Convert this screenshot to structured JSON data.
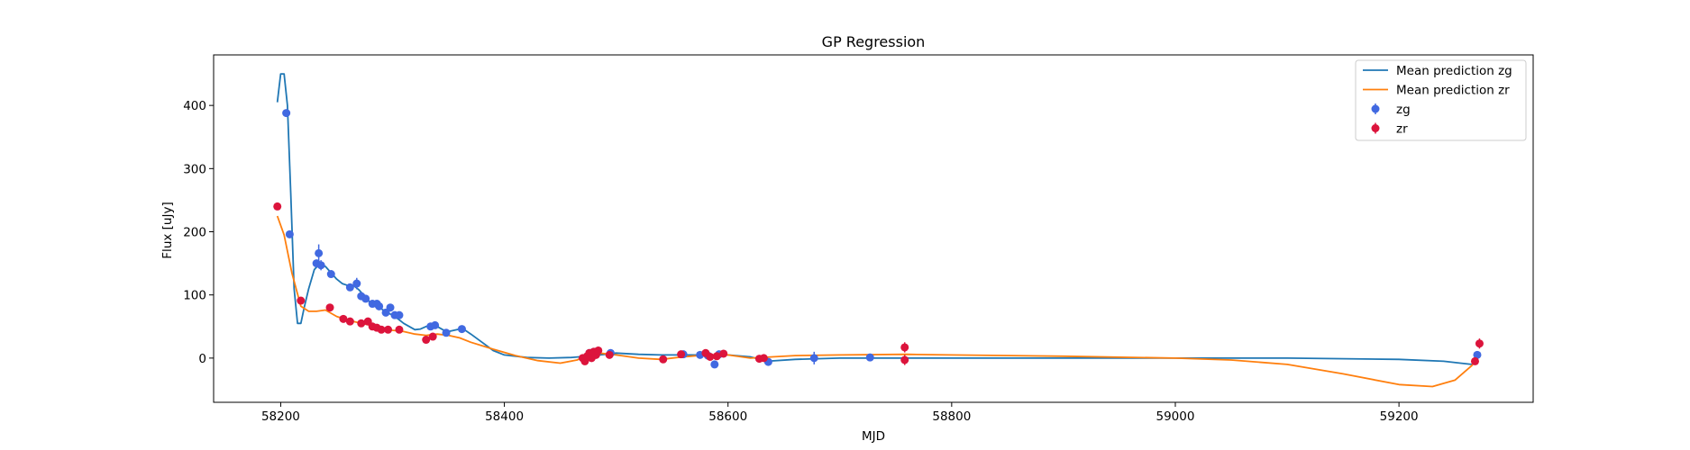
{
  "chart_data": {
    "type": "line",
    "title": "GP Regression",
    "xlabel": "MJD",
    "ylabel": "Flux [uJy]",
    "xlim": [
      58140,
      59320
    ],
    "ylim": [
      -70,
      480
    ],
    "xticks": [
      58200,
      58400,
      58600,
      58800,
      59000,
      59200
    ],
    "yticks": [
      0,
      100,
      200,
      300,
      400
    ],
    "grid": false,
    "legend_position": "top-right",
    "colors": {
      "mean_zg": "#1f77b4",
      "mean_zr": "#ff7f0e",
      "zg": "#4169e1",
      "zr": "#dc143c"
    },
    "lines": [
      {
        "name": "Mean prediction zg",
        "color_key": "mean_zg",
        "x": [
          58197,
          58200,
          58203,
          58206,
          58209,
          58212,
          58215,
          58218,
          58221,
          58225,
          58230,
          58235,
          58240,
          58245,
          58250,
          58255,
          58260,
          58265,
          58270,
          58275,
          58280,
          58285,
          58290,
          58295,
          58300,
          58305,
          58310,
          58315,
          58320,
          58325,
          58330,
          58335,
          58340,
          58345,
          58350,
          58355,
          58360,
          58365,
          58370,
          58380,
          58390,
          58400,
          58420,
          58440,
          58460,
          58480,
          58500,
          58520,
          58540,
          58560,
          58580,
          58600,
          58620,
          58635,
          58660,
          58700,
          58800,
          58900,
          59000,
          59100,
          59200,
          59240,
          59255,
          59265,
          59270
        ],
        "y": [
          405,
          450,
          450,
          400,
          260,
          110,
          55,
          55,
          80,
          110,
          140,
          150,
          145,
          135,
          125,
          118,
          115,
          115,
          108,
          98,
          88,
          82,
          78,
          72,
          68,
          62,
          55,
          50,
          45,
          46,
          50,
          52,
          50,
          45,
          42,
          44,
          46,
          44,
          38,
          25,
          12,
          5,
          1,
          0,
          1,
          4,
          8,
          6,
          5,
          5,
          5,
          5,
          2,
          -5,
          -2,
          0,
          0,
          0,
          0,
          0,
          -2,
          -5,
          -8,
          -10,
          -5
        ]
      },
      {
        "name": "Mean prediction zr",
        "color_key": "mean_zr",
        "x": [
          58197,
          58203,
          58210,
          58218,
          58225,
          58232,
          58240,
          58250,
          58260,
          58270,
          58280,
          58290,
          58300,
          58310,
          58320,
          58330,
          58340,
          58350,
          58360,
          58370,
          58390,
          58410,
          58430,
          58450,
          58465,
          58475,
          58485,
          58500,
          58520,
          58540,
          58560,
          58580,
          58600,
          58620,
          58640,
          58660,
          58700,
          58760,
          58800,
          58900,
          59000,
          59050,
          59100,
          59150,
          59200,
          59230,
          59250,
          59265,
          59272
        ],
        "y": [
          225,
          195,
          135,
          82,
          74,
          74,
          76,
          66,
          60,
          56,
          52,
          48,
          44,
          42,
          38,
          36,
          38,
          36,
          32,
          25,
          14,
          4,
          -4,
          -8,
          -3,
          5,
          8,
          5,
          0,
          -2,
          2,
          5,
          5,
          0,
          2,
          4,
          5,
          6,
          5,
          3,
          0,
          -3,
          -10,
          -25,
          -42,
          -45,
          -35,
          -12,
          5
        ]
      }
    ],
    "scatter": [
      {
        "name": "zg",
        "color_key": "zg",
        "points": [
          {
            "x": 58205,
            "y": 388,
            "err": 5
          },
          {
            "x": 58208,
            "y": 196,
            "err": 5
          },
          {
            "x": 58232,
            "y": 150,
            "err": 6
          },
          {
            "x": 58234,
            "y": 166,
            "err": 14
          },
          {
            "x": 58236,
            "y": 147,
            "err": 8
          },
          {
            "x": 58245,
            "y": 133,
            "err": 5
          },
          {
            "x": 58262,
            "y": 112,
            "err": 5
          },
          {
            "x": 58268,
            "y": 118,
            "err": 9
          },
          {
            "x": 58272,
            "y": 98,
            "err": 5
          },
          {
            "x": 58276,
            "y": 94,
            "err": 5
          },
          {
            "x": 58282,
            "y": 86,
            "err": 5
          },
          {
            "x": 58286,
            "y": 86,
            "err": 5
          },
          {
            "x": 58288,
            "y": 82,
            "err": 5
          },
          {
            "x": 58294,
            "y": 72,
            "err": 5
          },
          {
            "x": 58298,
            "y": 80,
            "err": 5
          },
          {
            "x": 58302,
            "y": 68,
            "err": 5
          },
          {
            "x": 58306,
            "y": 68,
            "err": 5
          },
          {
            "x": 58334,
            "y": 50,
            "err": 5
          },
          {
            "x": 58338,
            "y": 52,
            "err": 5
          },
          {
            "x": 58348,
            "y": 40,
            "err": 5
          },
          {
            "x": 58362,
            "y": 46,
            "err": 5
          },
          {
            "x": 58476,
            "y": 8,
            "err": 5
          },
          {
            "x": 58480,
            "y": 10,
            "err": 5
          },
          {
            "x": 58495,
            "y": 8,
            "err": 5
          },
          {
            "x": 58560,
            "y": 6,
            "err": 5
          },
          {
            "x": 58575,
            "y": 5,
            "err": 5
          },
          {
            "x": 58582,
            "y": 4,
            "err": 5
          },
          {
            "x": 58588,
            "y": -10,
            "err": 6
          },
          {
            "x": 58592,
            "y": 6,
            "err": 6
          },
          {
            "x": 58636,
            "y": -6,
            "err": 5
          },
          {
            "x": 58677,
            "y": 0,
            "err": 10
          },
          {
            "x": 58727,
            "y": 1,
            "err": 5
          },
          {
            "x": 59270,
            "y": 5,
            "err": 5
          }
        ]
      },
      {
        "name": "zr",
        "color_key": "zr",
        "points": [
          {
            "x": 58197,
            "y": 240,
            "err": 5
          },
          {
            "x": 58218,
            "y": 91,
            "err": 5
          },
          {
            "x": 58244,
            "y": 80,
            "err": 5
          },
          {
            "x": 58256,
            "y": 62,
            "err": 5
          },
          {
            "x": 58262,
            "y": 58,
            "err": 5
          },
          {
            "x": 58272,
            "y": 55,
            "err": 5
          },
          {
            "x": 58278,
            "y": 58,
            "err": 5
          },
          {
            "x": 58282,
            "y": 50,
            "err": 5
          },
          {
            "x": 58286,
            "y": 48,
            "err": 5
          },
          {
            "x": 58290,
            "y": 45,
            "err": 5
          },
          {
            "x": 58296,
            "y": 45,
            "err": 5
          },
          {
            "x": 58306,
            "y": 45,
            "err": 5
          },
          {
            "x": 58330,
            "y": 29,
            "err": 5
          },
          {
            "x": 58336,
            "y": 34,
            "err": 5
          },
          {
            "x": 58470,
            "y": 0,
            "err": 6
          },
          {
            "x": 58472,
            "y": -5,
            "err": 6
          },
          {
            "x": 58474,
            "y": 3,
            "err": 6
          },
          {
            "x": 58476,
            "y": 8,
            "err": 6
          },
          {
            "x": 58478,
            "y": 0,
            "err": 6
          },
          {
            "x": 58480,
            "y": 10,
            "err": 6
          },
          {
            "x": 58482,
            "y": 5,
            "err": 6
          },
          {
            "x": 58484,
            "y": 12,
            "err": 6
          },
          {
            "x": 58494,
            "y": 5,
            "err": 5
          },
          {
            "x": 58542,
            "y": -2,
            "err": 5
          },
          {
            "x": 58558,
            "y": 6,
            "err": 5
          },
          {
            "x": 58580,
            "y": 8,
            "err": 5
          },
          {
            "x": 58584,
            "y": 2,
            "err": 5
          },
          {
            "x": 58590,
            "y": 3,
            "err": 6
          },
          {
            "x": 58596,
            "y": 7,
            "err": 5
          },
          {
            "x": 58628,
            "y": -1,
            "err": 5
          },
          {
            "x": 58632,
            "y": 0,
            "err": 5
          },
          {
            "x": 58758,
            "y": 17,
            "err": 8
          },
          {
            "x": 58758,
            "y": -3,
            "err": 8
          },
          {
            "x": 59268,
            "y": -5,
            "err": 5
          },
          {
            "x": 59272,
            "y": 23,
            "err": 8
          }
        ]
      }
    ],
    "legend": [
      {
        "label": "Mean prediction zg",
        "kind": "line",
        "color_key": "mean_zg"
      },
      {
        "label": "Mean prediction zr",
        "kind": "line",
        "color_key": "mean_zr"
      },
      {
        "label": "zg",
        "kind": "errorbar",
        "color_key": "zg"
      },
      {
        "label": "zr",
        "kind": "errorbar",
        "color_key": "zr"
      }
    ]
  }
}
